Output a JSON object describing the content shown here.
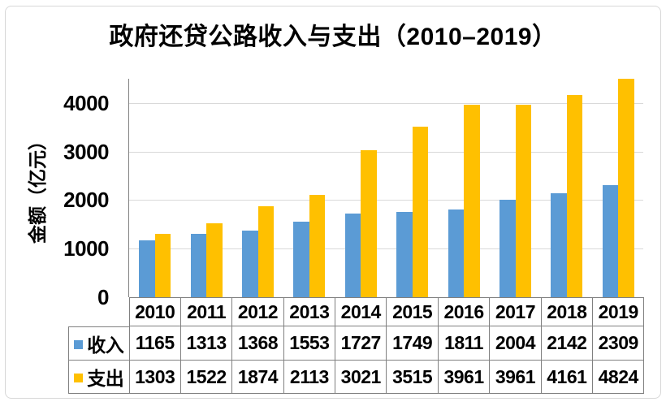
{
  "title": "政府还贷公路收入与支出（2010–2019）",
  "y_axis": {
    "label": "金额（亿元）",
    "tick_labels": [
      "0",
      "1000",
      "2000",
      "3000",
      "4000"
    ]
  },
  "colors": {
    "income": "#5B9BD5",
    "expense": "#FFC000",
    "gridline": "#D9D9D9",
    "table_border": "#808080"
  },
  "chart_data": {
    "type": "bar",
    "title": "政府还贷公路收入与支出（2010–2019）",
    "xlabel": "",
    "ylabel": "金额（亿元）",
    "categories": [
      "2010",
      "2011",
      "2012",
      "2013",
      "2014",
      "2015",
      "2016",
      "2017",
      "2018",
      "2019"
    ],
    "series": [
      {
        "name": "收入",
        "key": "income",
        "color": "#5B9BD5",
        "values": [
          1165,
          1313,
          1368,
          1553,
          1727,
          1749,
          1811,
          2004,
          2142,
          2309
        ]
      },
      {
        "name": "支出",
        "key": "expense",
        "color": "#FFC000",
        "values": [
          1303,
          1522,
          1874,
          2113,
          3021,
          3515,
          3961,
          3961,
          4161,
          4824
        ]
      }
    ],
    "ylim": [
      0,
      4500
    ],
    "yticks": [
      0,
      1000,
      2000,
      3000,
      4000
    ],
    "grid": true,
    "legend_position": "data-table-left"
  }
}
